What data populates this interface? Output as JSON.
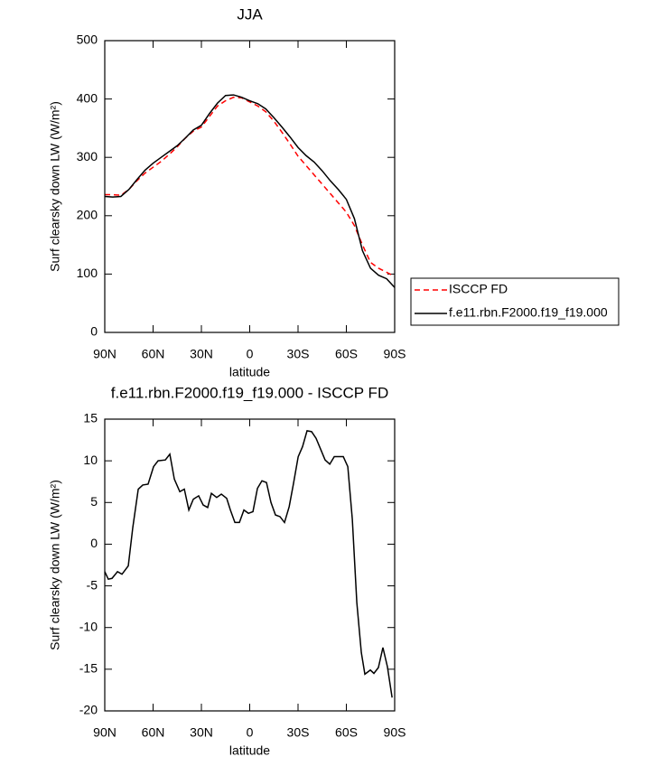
{
  "chart_data": [
    {
      "type": "line",
      "title": "JJA",
      "xlabel": "latitude",
      "ylabel": "Surf clearsky down LW (W/m²)",
      "x": [
        90,
        85,
        80,
        75,
        70,
        65,
        60,
        55,
        50,
        45,
        40,
        35,
        30,
        25,
        20,
        15,
        10,
        5,
        0,
        -5,
        -10,
        -15,
        -20,
        -25,
        -30,
        -35,
        -40,
        -45,
        -50,
        -55,
        -60,
        -65,
        -70,
        -75,
        -80,
        -85,
        -90
      ],
      "series": [
        {
          "name": "ISCCP FD",
          "color": "#ff0000",
          "dashed": true,
          "values": [
            236,
            236,
            235,
            245,
            260,
            273,
            283,
            293,
            305,
            318,
            333,
            345,
            352,
            370,
            388,
            397,
            403,
            402,
            395,
            388,
            378,
            362,
            343,
            323,
            302,
            286,
            270,
            254,
            238,
            222,
            206,
            183,
            150,
            120,
            110,
            103,
            96
          ]
        },
        {
          "name": "f.e11.rbn.F2000.f19_f19.000",
          "color": "#000000",
          "dashed": false,
          "values": [
            233,
            232,
            233,
            245,
            262,
            278,
            290,
            300,
            310,
            320,
            333,
            347,
            355,
            375,
            393,
            406,
            407,
            403,
            397,
            392,
            383,
            368,
            352,
            335,
            317,
            303,
            292,
            277,
            260,
            245,
            228,
            195,
            140,
            110,
            98,
            92,
            77
          ]
        }
      ],
      "xlim": [
        90,
        -90
      ],
      "xticks": [
        {
          "value": 90,
          "label": "90N"
        },
        {
          "value": 60,
          "label": "60N"
        },
        {
          "value": 30,
          "label": "30N"
        },
        0,
        {
          "value": -30,
          "label": "30S"
        },
        {
          "value": -60,
          "label": "60S"
        },
        {
          "value": -90,
          "label": "90S"
        }
      ],
      "ylim": [
        0,
        500
      ],
      "yticks": [
        0,
        100,
        200,
        300,
        400,
        500
      ],
      "legend": "right"
    },
    {
      "type": "line",
      "title": "f.e11.rbn.F2000.f19_f19.000 - ISCCP FD",
      "xlabel": "latitude",
      "ylabel": "Surf clearsky down LW (W/m²)",
      "x": [
        90,
        87.8,
        85.5,
        82.1,
        79.3,
        75.4,
        72.6,
        69.2,
        66.4,
        63.1,
        59.7,
        56.9,
        52.4,
        49.6,
        46.8,
        43.4,
        40.6,
        37.8,
        35,
        31.7,
        28.9,
        26.1,
        23.8,
        20.5,
        17.6,
        14.3,
        12,
        9.2,
        6.4,
        3.6,
        0.8,
        -2,
        -4.8,
        -7.6,
        -10.4,
        -13.2,
        -16,
        -18.8,
        -21.6,
        -24.5,
        -27.2,
        -30.1,
        -32.8,
        -35.6,
        -38.4,
        -41.2,
        -44,
        -46.8,
        -49.7,
        -52.5,
        -55.3,
        -58.1,
        -60.9,
        -63.7,
        -66.5,
        -69.3,
        -71.5,
        -74.9,
        -77.1,
        -79.9,
        -82.7,
        -85.5,
        -88.4
      ],
      "values": [
        -3.3,
        -4.2,
        -4.1,
        -3.3,
        -3.6,
        -2.6,
        2,
        6.6,
        7.1,
        7.2,
        9.3,
        10,
        10.1,
        10.8,
        7.8,
        6.3,
        6.6,
        4.1,
        5.4,
        5.8,
        4.7,
        4.4,
        6.1,
        5.6,
        6,
        5.5,
        4.1,
        2.6,
        2.6,
        4.1,
        3.7,
        3.9,
        6.7,
        7.6,
        7.4,
        5,
        3.5,
        3.3,
        2.6,
        4.5,
        7.3,
        10.5,
        11.7,
        13.6,
        13.5,
        12.7,
        11.4,
        10.1,
        9.6,
        10.5,
        10.5,
        10.5,
        9.3,
        3,
        -7,
        -13,
        -15.6,
        -15.1,
        -15.5,
        -14.8,
        -12.4,
        -14.7,
        -18.4
      ],
      "color": "#000000",
      "xlim": [
        90,
        -90
      ],
      "xticks": [
        {
          "value": 90,
          "label": "90N"
        },
        {
          "value": 60,
          "label": "60N"
        },
        {
          "value": 30,
          "label": "30N"
        },
        0,
        {
          "value": -30,
          "label": "30S"
        },
        {
          "value": -60,
          "label": "60S"
        },
        {
          "value": -90,
          "label": "90S"
        }
      ],
      "ylim": [
        -20,
        15
      ],
      "yticks": [
        -20,
        -15,
        -10,
        -5,
        0,
        5,
        10,
        15
      ]
    }
  ]
}
